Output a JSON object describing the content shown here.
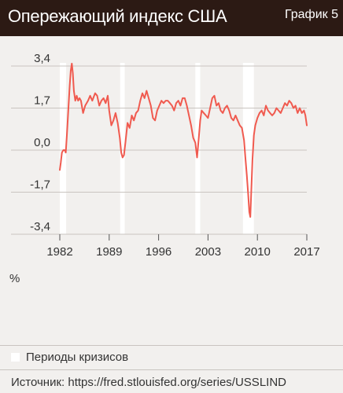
{
  "header": {
    "title": "Опережающий индекс США",
    "label": "График 5"
  },
  "chart_data": {
    "type": "line",
    "title": "Опережающий индекс США",
    "ylabel": "%",
    "xlabel": "",
    "ylim": [
      -3.4,
      3.4
    ],
    "xlim": [
      1982,
      2017
    ],
    "y_ticks": [
      "3,4",
      "1,7",
      "0,0",
      "-1,7",
      "-3,4"
    ],
    "y_tick_values": [
      3.4,
      1.7,
      0.0,
      -1.7,
      -3.4
    ],
    "x_ticks": [
      "1982",
      "1989",
      "1996",
      "2003",
      "2010",
      "2017"
    ],
    "x_tick_values": [
      1982,
      1989,
      1996,
      2003,
      2010,
      2017
    ],
    "grid": "horizontal",
    "line_color": "#f05a4f",
    "recession_color": "#ffffff",
    "recessions": [
      [
        1982.0,
        1982.9
      ],
      [
        1990.55,
        1991.2
      ],
      [
        2001.2,
        2001.9
      ],
      [
        2007.95,
        2009.5
      ]
    ],
    "series": [
      {
        "x": [
          1982.0,
          1982.15,
          1982.3,
          1982.5,
          1982.7,
          1982.85,
          1983.0,
          1983.2,
          1983.4,
          1983.55,
          1983.7,
          1983.85,
          1984.0,
          1984.2,
          1984.4,
          1984.6,
          1984.8,
          1985.0,
          1985.3,
          1985.6,
          1986.0,
          1986.3,
          1986.6,
          1987.0,
          1987.3,
          1987.6,
          1987.9,
          1988.2,
          1988.5,
          1988.8,
          1989.0,
          1989.3,
          1989.6,
          1989.9,
          1990.2,
          1990.5,
          1990.7,
          1990.9,
          1991.1,
          1991.3,
          1991.6,
          1991.9,
          1992.2,
          1992.5,
          1992.8,
          1993.1,
          1993.4,
          1993.7,
          1994.0,
          1994.3,
          1994.6,
          1994.9,
          1995.2,
          1995.5,
          1995.8,
          1996.1,
          1996.4,
          1996.7,
          1997.0,
          1997.3,
          1997.6,
          1997.9,
          1998.2,
          1998.5,
          1998.8,
          1999.1,
          1999.4,
          1999.7,
          2000.0,
          2000.3,
          2000.6,
          2000.9,
          2001.2,
          2001.45,
          2001.7,
          2001.9,
          2002.1,
          2002.4,
          2002.7,
          2003.0,
          2003.3,
          2003.6,
          2003.9,
          2004.2,
          2004.5,
          2004.8,
          2005.1,
          2005.4,
          2005.7,
          2006.0,
          2006.3,
          2006.6,
          2006.9,
          2007.2,
          2007.5,
          2007.8,
          2008.1,
          2008.3,
          2008.5,
          2008.7,
          2008.85,
          2009.0,
          2009.15,
          2009.3,
          2009.5,
          2009.7,
          2010.0,
          2010.3,
          2010.6,
          2010.9,
          2011.2,
          2011.5,
          2011.8,
          2012.1,
          2012.4,
          2012.7,
          2013.0,
          2013.3,
          2013.6,
          2013.9,
          2014.2,
          2014.5,
          2014.8,
          2015.1,
          2015.4,
          2015.7,
          2016.0,
          2016.3,
          2016.6,
          2016.8,
          2017.0
        ],
        "values": [
          -0.8,
          -0.5,
          -0.1,
          0.0,
          0.0,
          -0.1,
          0.6,
          1.6,
          2.6,
          3.2,
          3.5,
          3.1,
          2.4,
          2.0,
          2.2,
          2.0,
          2.1,
          2.0,
          1.5,
          1.8,
          2.0,
          2.2,
          2.0,
          2.3,
          2.2,
          1.8,
          2.0,
          2.1,
          1.9,
          2.2,
          1.6,
          1.0,
          1.2,
          1.5,
          1.1,
          0.5,
          -0.1,
          -0.3,
          -0.2,
          0.3,
          1.1,
          0.9,
          1.4,
          1.2,
          1.5,
          1.6,
          2.0,
          2.3,
          2.1,
          2.4,
          2.1,
          1.8,
          1.3,
          1.2,
          1.6,
          1.8,
          2.0,
          1.9,
          2.0,
          2.0,
          1.9,
          1.8,
          1.6,
          1.9,
          2.0,
          1.8,
          2.1,
          2.1,
          1.8,
          1.4,
          1.0,
          0.5,
          0.3,
          -0.3,
          0.5,
          1.2,
          1.6,
          1.5,
          1.4,
          1.3,
          1.7,
          2.1,
          2.2,
          1.8,
          1.9,
          1.6,
          1.5,
          1.7,
          1.8,
          1.6,
          1.3,
          1.2,
          1.4,
          1.2,
          1.0,
          0.9,
          0.4,
          -0.3,
          -1.0,
          -1.8,
          -2.5,
          -2.7,
          -1.5,
          -0.4,
          0.6,
          1.0,
          1.3,
          1.5,
          1.6,
          1.4,
          1.8,
          1.6,
          1.5,
          1.4,
          1.5,
          1.7,
          1.6,
          1.5,
          1.7,
          1.9,
          1.8,
          2.0,
          1.9,
          1.7,
          1.8,
          1.5,
          1.7,
          1.5,
          1.6,
          1.4,
          1.0
        ]
      }
    ]
  },
  "legend": {
    "items": [
      "Периоды кризисов"
    ]
  },
  "source": "Источник: https://fred.stlouisfed.org/series/USSLIND"
}
